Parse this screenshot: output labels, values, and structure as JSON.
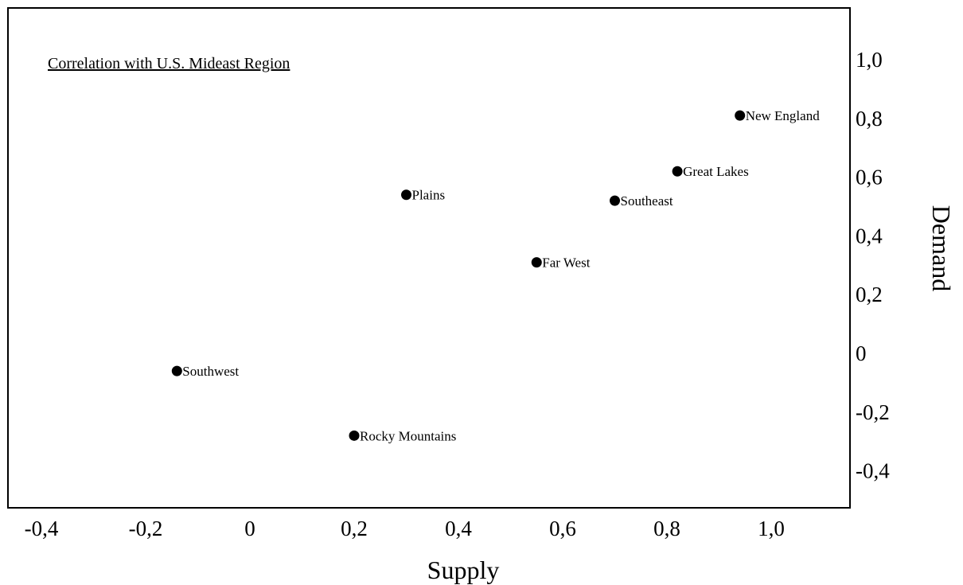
{
  "chart_data": {
    "type": "scatter",
    "title": "Correlation with U.S. Mideast Region",
    "xlabel": "Supply",
    "ylabel": "Demand",
    "xlim": [
      -0.4,
      1.0
    ],
    "ylim": [
      -0.4,
      1.0
    ],
    "x_ticks": [
      "-0,4",
      "-0,2",
      "0",
      "0,2",
      "0,4",
      "0,6",
      "0,8",
      "1,0"
    ],
    "y_ticks": [
      "-0,4",
      "-0,2",
      "0",
      "0,2",
      "0,4",
      "0,6",
      "0,8",
      "1,0"
    ],
    "grid": false,
    "points": [
      {
        "label": "New England",
        "x": 0.94,
        "y": 0.81
      },
      {
        "label": "Great Lakes",
        "x": 0.82,
        "y": 0.62
      },
      {
        "label": "Plains",
        "x": 0.3,
        "y": 0.54
      },
      {
        "label": "Southeast",
        "x": 0.7,
        "y": 0.52
      },
      {
        "label": "Far West",
        "x": 0.55,
        "y": 0.31
      },
      {
        "label": "Southwest",
        "x": -0.14,
        "y": -0.06
      },
      {
        "label": "Rocky Mountains",
        "x": 0.2,
        "y": -0.28
      }
    ]
  }
}
